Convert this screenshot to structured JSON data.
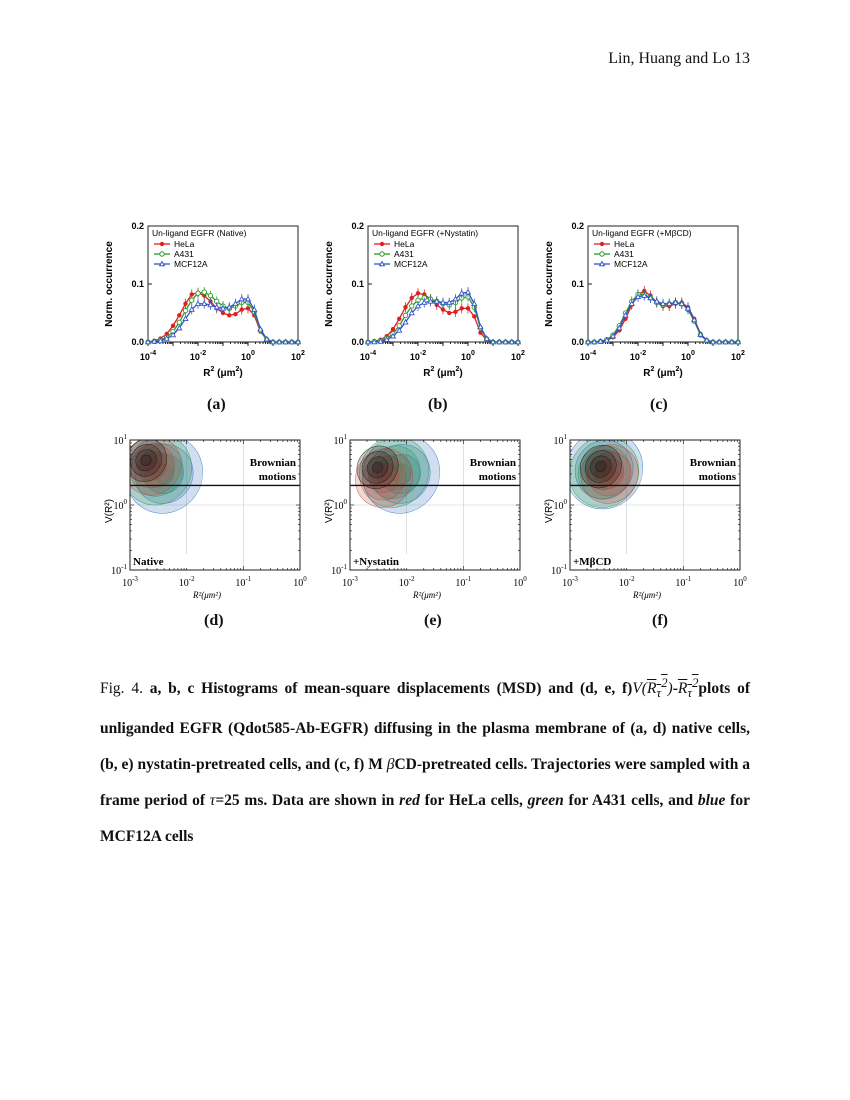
{
  "header": {
    "running_head": "Lin, Huang and Lo 13"
  },
  "histograms": [
    {
      "legend_title": "Un-ligand EGFR (Native)",
      "panel_label": "(a)"
    },
    {
      "legend_title": "Un-ligand EGFR (+Nystatin)",
      "panel_label": "(b)"
    },
    {
      "legend_title": "Un-ligand EGFR (+MβCD)",
      "panel_label": "(c)"
    }
  ],
  "histogram_axes": {
    "ylabel": "Norm. occurrence",
    "xlabel_base": "R",
    "xlabel_unit": "(μm",
    "y_ticks": [
      "0.0",
      "0.1",
      "0.2"
    ],
    "x_ticks_base": "10",
    "x_ticks_exp": [
      "-4",
      "-2",
      "0",
      "2"
    ],
    "legend_series": [
      "HeLa",
      "A431",
      "MCF12A"
    ]
  },
  "density_plots": [
    {
      "condition": "Native",
      "panel_label": "(d)"
    },
    {
      "condition": "+Nystatin",
      "panel_label": "(e)"
    },
    {
      "condition": "+MβCD",
      "panel_label": "(f)"
    }
  ],
  "density_axes": {
    "ylabel": "V(R²)",
    "xlabel": "R²(μm²)",
    "annotation_line1": "Brownian",
    "annotation_line2": "motions",
    "y_ticks_exp": [
      "1",
      "0",
      "-1"
    ],
    "x_ticks_exp": [
      "-3",
      "-2",
      "-1",
      "0"
    ]
  },
  "caption": {
    "fig_label": "Fig. 4.",
    "part1": "a, b, c Histograms of mean-square displacements (MSD) and (d, e, f)",
    "part2": "plots of unliganded EGFR (Qdot585-Ab-EGFR) diffusing in the plasma membrane of (a, d) native cells, (b, e) nystatin-pretreated cells, and (c, f) M ",
    "part3": "CD-pretreated cells. Trajectories were sampled with a frame period of ",
    "part4": "=25 ms. Data are shown in ",
    "red": "red",
    "part5": " for HeLa cells, ",
    "green": "green",
    "part6": " for A431 cells, and ",
    "blue": "blue",
    "part7": " for MCF12A cells"
  },
  "chart_data": [
    {
      "type": "line",
      "title": "Un-ligand EGFR (Native)",
      "xlabel": "R2 (μm2)",
      "ylabel": "Norm. occurrence",
      "xscale": "log",
      "xlim": [
        0.0001,
        100
      ],
      "ylim": [
        0,
        0.2
      ],
      "x": [
        0.0001,
        0.000178,
        0.000316,
        0.000562,
        0.001,
        0.00178,
        0.00316,
        0.00562,
        0.01,
        0.0178,
        0.0316,
        0.0562,
        0.1,
        0.178,
        0.316,
        0.562,
        1,
        1.78,
        3.16,
        5.62,
        10,
        17.8,
        31.6,
        56.2,
        100
      ],
      "series": [
        {
          "name": "HeLa",
          "color": "#e02020",
          "values": [
            0.0,
            0.002,
            0.006,
            0.014,
            0.028,
            0.046,
            0.066,
            0.082,
            0.085,
            0.08,
            0.07,
            0.058,
            0.05,
            0.046,
            0.048,
            0.056,
            0.058,
            0.046,
            0.018,
            0.004,
            0.0,
            0.0,
            0.0,
            0.0,
            0.0
          ]
        },
        {
          "name": "A431",
          "color": "#2a9a2a",
          "values": [
            0.0,
            0.001,
            0.003,
            0.008,
            0.018,
            0.034,
            0.054,
            0.072,
            0.084,
            0.086,
            0.08,
            0.07,
            0.062,
            0.058,
            0.062,
            0.068,
            0.068,
            0.052,
            0.02,
            0.004,
            0.0,
            0.0,
            0.0,
            0.0,
            0.0
          ]
        },
        {
          "name": "MCF12A",
          "color": "#3355cc",
          "values": [
            0.0,
            0.001,
            0.002,
            0.006,
            0.012,
            0.024,
            0.04,
            0.056,
            0.066,
            0.066,
            0.064,
            0.06,
            0.058,
            0.06,
            0.066,
            0.074,
            0.074,
            0.056,
            0.022,
            0.005,
            0.0,
            0.0,
            0.0,
            0.0,
            0.0
          ]
        }
      ]
    },
    {
      "type": "line",
      "title": "Un-ligand EGFR (+Nystatin)",
      "xlabel": "R2 (μm2)",
      "ylabel": "Norm. occurrence",
      "xscale": "log",
      "xlim": [
        0.0001,
        100
      ],
      "ylim": [
        0,
        0.2
      ],
      "x": [
        0.0001,
        0.000178,
        0.000316,
        0.000562,
        0.001,
        0.00178,
        0.00316,
        0.00562,
        0.01,
        0.0178,
        0.0316,
        0.0562,
        0.1,
        0.178,
        0.316,
        0.562,
        1,
        1.78,
        3.16,
        5.62,
        10,
        17.8,
        31.6,
        56.2,
        100
      ],
      "series": [
        {
          "name": "HeLa",
          "color": "#e02020",
          "values": [
            0.0,
            0.001,
            0.004,
            0.01,
            0.022,
            0.04,
            0.06,
            0.076,
            0.084,
            0.082,
            0.074,
            0.064,
            0.056,
            0.05,
            0.052,
            0.058,
            0.058,
            0.044,
            0.016,
            0.003,
            0.0,
            0.0,
            0.0,
            0.0,
            0.0
          ]
        },
        {
          "name": "A431",
          "color": "#2a9a2a",
          "values": [
            0.0,
            0.001,
            0.002,
            0.006,
            0.014,
            0.028,
            0.046,
            0.062,
            0.072,
            0.076,
            0.074,
            0.07,
            0.066,
            0.064,
            0.068,
            0.076,
            0.078,
            0.06,
            0.024,
            0.005,
            0.0,
            0.0,
            0.0,
            0.0,
            0.0
          ]
        },
        {
          "name": "MCF12A",
          "color": "#3355cc",
          "values": [
            0.0,
            0.0,
            0.001,
            0.004,
            0.01,
            0.02,
            0.034,
            0.05,
            0.062,
            0.068,
            0.07,
            0.07,
            0.068,
            0.068,
            0.074,
            0.084,
            0.086,
            0.066,
            0.026,
            0.006,
            0.0,
            0.0,
            0.0,
            0.0,
            0.0
          ]
        }
      ]
    },
    {
      "type": "line",
      "title": "Un-ligand EGFR (+MβCD)",
      "xlabel": "R2 (μm2)",
      "ylabel": "Norm. occurrence",
      "xscale": "log",
      "xlim": [
        0.0001,
        100
      ],
      "ylim": [
        0,
        0.2
      ],
      "x": [
        0.0001,
        0.000178,
        0.000316,
        0.000562,
        0.001,
        0.00178,
        0.00316,
        0.00562,
        0.01,
        0.0178,
        0.0316,
        0.0562,
        0.1,
        0.178,
        0.316,
        0.562,
        1,
        1.78,
        3.16,
        5.62,
        10,
        17.8,
        31.6,
        56.2,
        100
      ],
      "series": [
        {
          "name": "HeLa",
          "color": "#e02020",
          "values": [
            0.0,
            0.0,
            0.001,
            0.003,
            0.008,
            0.02,
            0.04,
            0.064,
            0.082,
            0.088,
            0.08,
            0.068,
            0.062,
            0.062,
            0.066,
            0.068,
            0.06,
            0.04,
            0.014,
            0.003,
            0.0,
            0.0,
            0.0,
            0.0,
            0.0
          ]
        },
        {
          "name": "A431",
          "color": "#2a9a2a",
          "values": [
            0.0,
            0.0,
            0.001,
            0.004,
            0.012,
            0.028,
            0.05,
            0.07,
            0.082,
            0.082,
            0.076,
            0.068,
            0.064,
            0.066,
            0.068,
            0.066,
            0.056,
            0.036,
            0.012,
            0.002,
            0.0,
            0.0,
            0.0,
            0.0,
            0.0
          ]
        },
        {
          "name": "MCF12A",
          "color": "#3355cc",
          "values": [
            0.0,
            0.0,
            0.001,
            0.003,
            0.01,
            0.024,
            0.046,
            0.066,
            0.078,
            0.08,
            0.076,
            0.07,
            0.066,
            0.066,
            0.068,
            0.066,
            0.058,
            0.038,
            0.013,
            0.003,
            0.0,
            0.0,
            0.0,
            0.0,
            0.0
          ]
        }
      ]
    },
    {
      "type": "heatmap",
      "title": "Native",
      "xlabel": "R²(μm²)",
      "ylabel": "V(R²)",
      "xscale": "log",
      "yscale": "log",
      "xlim": [
        0.001,
        1
      ],
      "ylim": [
        0.1,
        10
      ],
      "reference_line_y": 2,
      "blobs": [
        {
          "color": "#2a6ab8",
          "x": 0.004,
          "y": 3.0
        },
        {
          "color": "#2a9a4a",
          "x": 0.003,
          "y": 3.5
        },
        {
          "color": "#d04040",
          "x": 0.0025,
          "y": 4.0
        },
        {
          "color": "#111111",
          "x": 0.0022,
          "y": 4.5
        }
      ]
    },
    {
      "type": "heatmap",
      "title": "+Nystatin",
      "xlabel": "R²(μm²)",
      "ylabel": "V(R²)",
      "xscale": "log",
      "yscale": "log",
      "xlim": [
        0.001,
        1
      ],
      "ylim": [
        0.1,
        10
      ],
      "reference_line_y": 2,
      "blobs": [
        {
          "color": "#2a6ab8",
          "x": 0.008,
          "y": 3.0
        },
        {
          "color": "#2a9a4a",
          "x": 0.006,
          "y": 3.2
        },
        {
          "color": "#d04040",
          "x": 0.004,
          "y": 2.6
        },
        {
          "color": "#111111",
          "x": 0.0035,
          "y": 3.5
        }
      ]
    },
    {
      "type": "heatmap",
      "title": "+MβCD",
      "xlabel": "R²(μm²)",
      "ylabel": "V(R²)",
      "xscale": "log",
      "yscale": "log",
      "xlim": [
        0.001,
        1
      ],
      "ylim": [
        0.1,
        10
      ],
      "reference_line_y": 2,
      "blobs": [
        {
          "color": "#2a6ab8",
          "x": 0.004,
          "y": 3.5
        },
        {
          "color": "#2a9a4a",
          "x": 0.004,
          "y": 3.2
        },
        {
          "color": "#d04040",
          "x": 0.005,
          "y": 3.0
        },
        {
          "color": "#111111",
          "x": 0.004,
          "y": 3.6
        }
      ]
    }
  ]
}
